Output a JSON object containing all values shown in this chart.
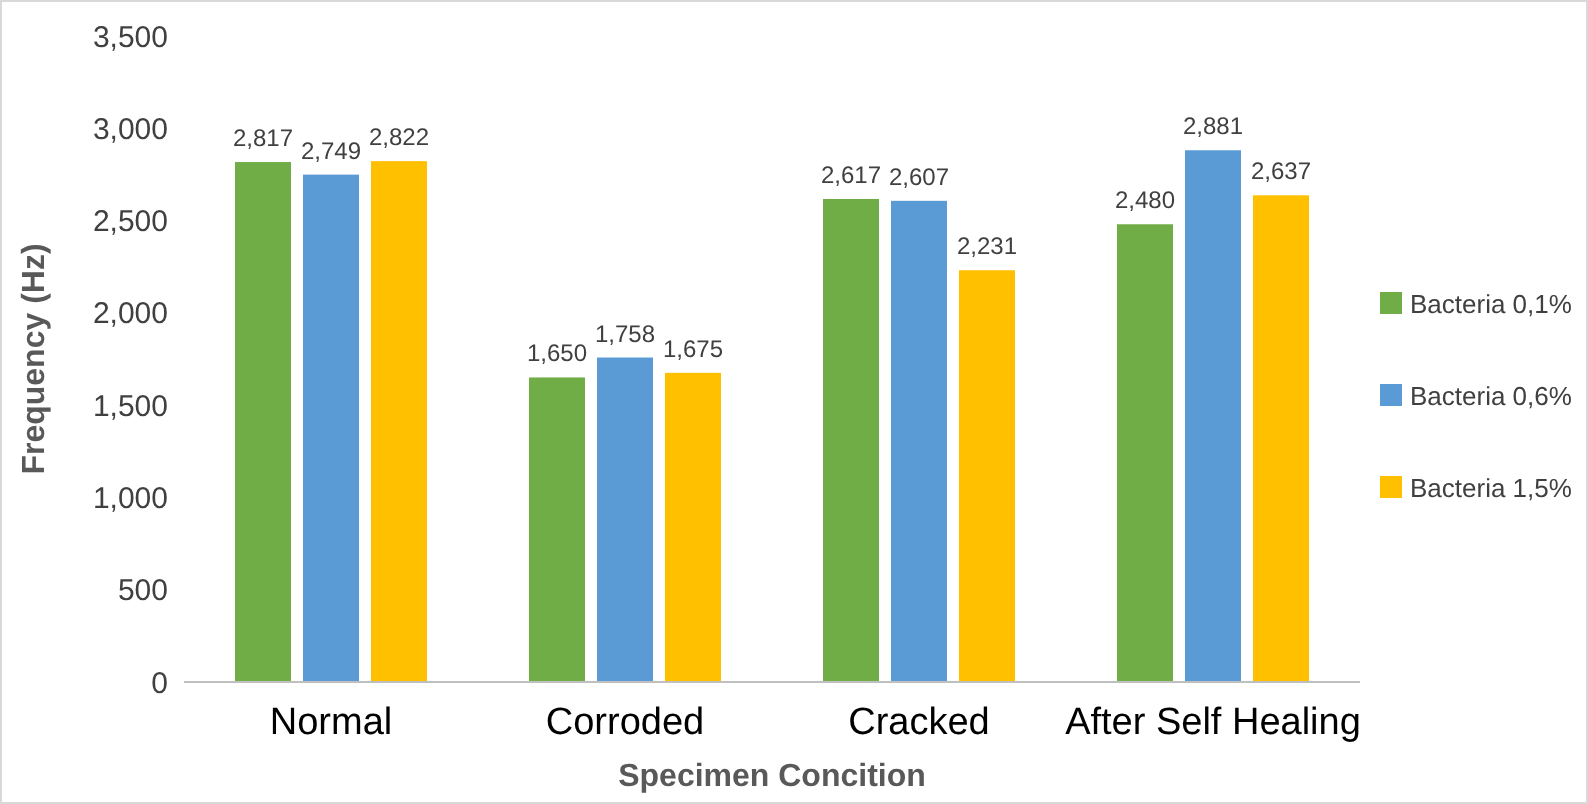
{
  "chart_data": {
    "type": "bar",
    "xlabel": "Specimen Concition",
    "ylabel": "Frequency (Hz)",
    "categories": [
      "Normal",
      "Corroded",
      "Cracked",
      "After Self Healing"
    ],
    "series": [
      {
        "name": "Bacteria 0,1%",
        "color": "#70ad47",
        "values": [
          2817,
          1650,
          2617,
          2480
        ],
        "value_labels": [
          "2,817",
          "1,650",
          "2,617",
          "2,480"
        ]
      },
      {
        "name": "Bacteria 0,6%",
        "color": "#5b9bd5",
        "values": [
          2749,
          1758,
          2607,
          2881
        ],
        "value_labels": [
          "2,749",
          "1,758",
          "2,607",
          "2,881"
        ]
      },
      {
        "name": "Bacteria 1,5%",
        "color": "#ffc000",
        "values": [
          2822,
          1675,
          2231,
          2637
        ],
        "value_labels": [
          "2,822",
          "1,675",
          "2,231",
          "2,637"
        ]
      }
    ],
    "ylim": [
      0,
      3500
    ],
    "yticks": [
      0,
      {
        "value": 500,
        "label": "500"
      },
      {
        "value": 1000,
        "label": "1,000"
      },
      {
        "value": 1500,
        "label": "1,500"
      },
      {
        "value": 2000,
        "label": "2,000"
      },
      {
        "value": 2500,
        "label": "2,500"
      },
      {
        "value": 3000,
        "label": "3,000"
      },
      {
        "value": 3500,
        "label": "3,500"
      }
    ],
    "grid": false,
    "legend": "right"
  }
}
